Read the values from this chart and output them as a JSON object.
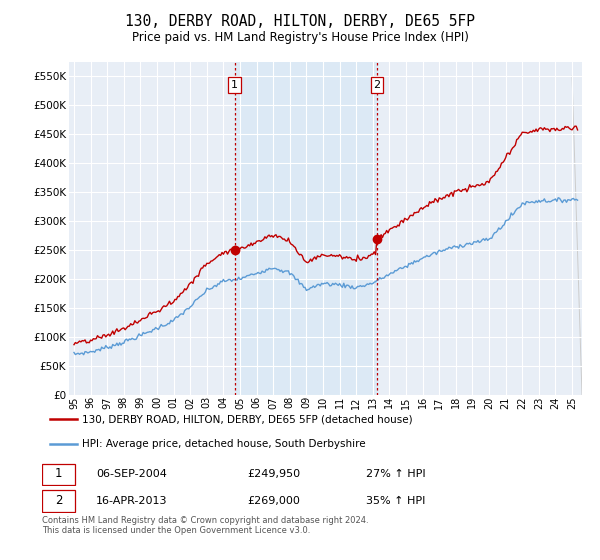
{
  "title": "130, DERBY ROAD, HILTON, DERBY, DE65 5FP",
  "subtitle": "Price paid vs. HM Land Registry's House Price Index (HPI)",
  "ytick_values": [
    0,
    50000,
    100000,
    150000,
    200000,
    250000,
    300000,
    350000,
    400000,
    450000,
    500000,
    550000
  ],
  "ylim": [
    0,
    575000
  ],
  "xtick_years": [
    1995,
    1996,
    1997,
    1998,
    1999,
    2000,
    2001,
    2002,
    2003,
    2004,
    2005,
    2006,
    2007,
    2008,
    2009,
    2010,
    2011,
    2012,
    2013,
    2014,
    2015,
    2016,
    2017,
    2018,
    2019,
    2020,
    2021,
    2022,
    2023,
    2024,
    2025
  ],
  "hpi_color": "#5b9bd5",
  "price_color": "#c00000",
  "sale1_x": 2004.67,
  "sale1_y": 249950,
  "sale2_x": 2013.25,
  "sale2_y": 269000,
  "vline_color": "#c00000",
  "shade_color": "#dce9f5",
  "legend_label_price": "130, DERBY ROAD, HILTON, DERBY, DE65 5FP (detached house)",
  "legend_label_hpi": "HPI: Average price, detached house, South Derbyshire",
  "annotation1_date": "06-SEP-2004",
  "annotation1_price": "£249,950",
  "annotation1_hpi": "27% ↑ HPI",
  "annotation2_date": "16-APR-2013",
  "annotation2_price": "£269,000",
  "annotation2_hpi": "35% ↑ HPI",
  "footnote": "Contains HM Land Registry data © Crown copyright and database right 2024.\nThis data is licensed under the Open Government Licence v3.0.",
  "background_color": "#ffffff",
  "plot_bg_color": "#e8eef6",
  "grid_color": "#ffffff"
}
